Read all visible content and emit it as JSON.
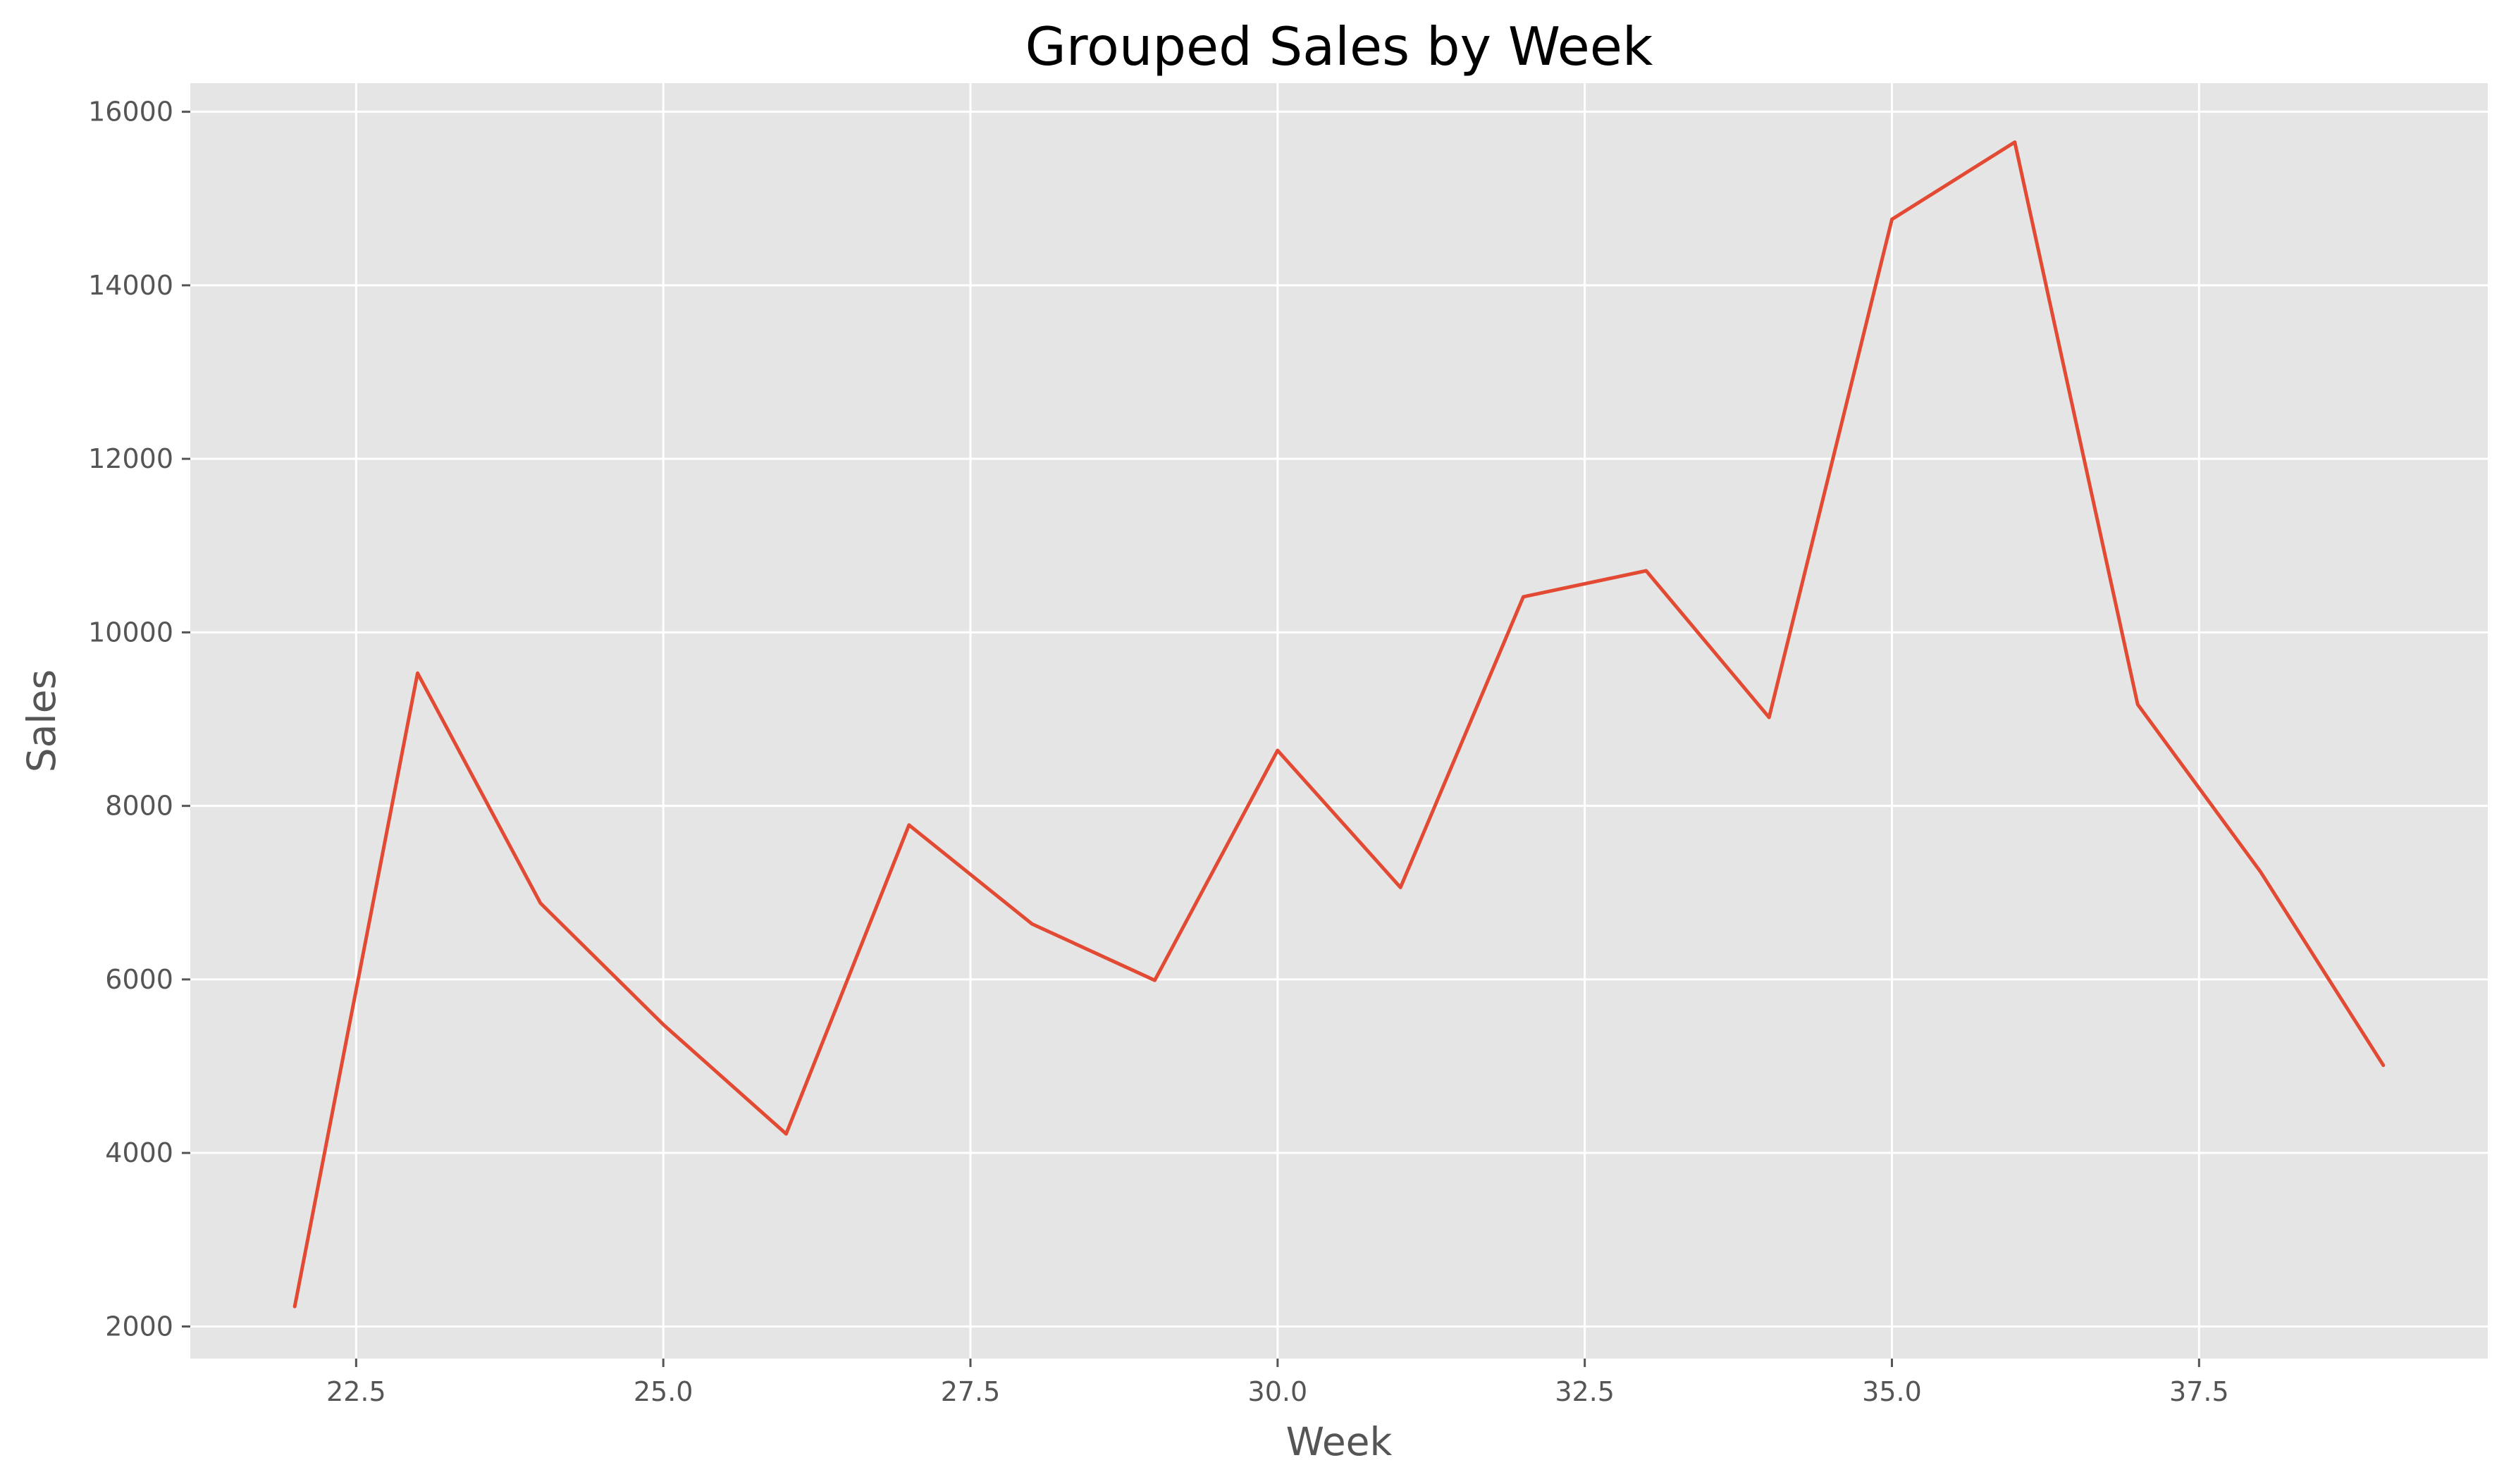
{
  "chart_data": {
    "type": "line",
    "title": "Grouped Sales by Week",
    "xlabel": "Week",
    "ylabel": "Sales",
    "xlim": [
      21.15,
      39.85
    ],
    "ylim": [
      1630,
      16330
    ],
    "xticks": [
      22.5,
      25.0,
      27.5,
      30.0,
      32.5,
      35.0,
      37.5
    ],
    "xtick_labels": [
      "22.5",
      "25.0",
      "27.5",
      "30.0",
      "32.5",
      "35.0",
      "37.5"
    ],
    "yticks": [
      2000,
      4000,
      6000,
      8000,
      10000,
      12000,
      14000,
      16000
    ],
    "ytick_labels": [
      "2000",
      "4000",
      "6000",
      "8000",
      "10000",
      "12000",
      "14000",
      "16000"
    ],
    "grid": true,
    "series": [
      {
        "color": "#e24a33",
        "x": [
          22,
          23,
          24,
          25,
          26,
          27,
          28,
          29,
          30,
          31,
          32,
          33,
          34,
          35,
          36,
          37,
          38,
          39
        ],
        "y": [
          2230,
          9530,
          6880,
          5480,
          4220,
          7780,
          6640,
          5990,
          8640,
          7060,
          10410,
          10710,
          9020,
          14760,
          15650,
          9170,
          7240,
          5010
        ]
      }
    ]
  }
}
